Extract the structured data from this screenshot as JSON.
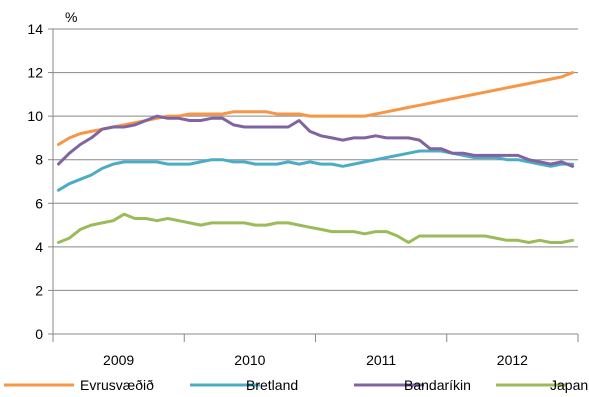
{
  "chart_data": {
    "type": "line",
    "title": "",
    "xlabel": "",
    "ylabel": "",
    "y_unit": "%",
    "ylim": [
      0,
      14
    ],
    "y_ticks": [
      "0",
      "2",
      "4",
      "6",
      "8",
      "10",
      "12",
      "14"
    ],
    "x_start": "2009-01",
    "x_end": "2012-12",
    "x_tick_labels": [
      "2009",
      "2010",
      "2011",
      "2012"
    ],
    "grid": "horizontal",
    "legend_position": "bottom",
    "series": [
      {
        "name": "Evrusvæðið",
        "color": "#f79646",
        "values": [
          8.7,
          9.0,
          9.2,
          9.3,
          9.4,
          9.5,
          9.6,
          9.7,
          9.8,
          9.9,
          10.0,
          10.0,
          10.1,
          10.1,
          10.1,
          10.1,
          10.2,
          10.2,
          10.2,
          10.2,
          10.1,
          10.1,
          10.1,
          10.0,
          10.0,
          10.0,
          10.0,
          10.0,
          10.0,
          10.1,
          10.2,
          10.3,
          10.4,
          10.5,
          10.6,
          10.7,
          10.8,
          10.9,
          11.0,
          11.1,
          11.2,
          11.3,
          11.4,
          11.5,
          11.6,
          11.7,
          11.8,
          12.0
        ]
      },
      {
        "name": "Bretland",
        "color": "#4bacc6",
        "values": [
          6.6,
          6.9,
          7.1,
          7.3,
          7.6,
          7.8,
          7.9,
          7.9,
          7.9,
          7.9,
          7.8,
          7.8,
          7.8,
          7.9,
          8.0,
          8.0,
          7.9,
          7.9,
          7.8,
          7.8,
          7.8,
          7.9,
          7.8,
          7.9,
          7.8,
          7.8,
          7.7,
          7.8,
          7.9,
          8.0,
          8.1,
          8.2,
          8.3,
          8.4,
          8.4,
          8.4,
          8.3,
          8.2,
          8.1,
          8.1,
          8.1,
          8.0,
          8.0,
          7.9,
          7.8,
          7.7,
          7.8,
          7.8
        ]
      },
      {
        "name": "Bandaríkin",
        "color": "#8064a2",
        "values": [
          7.8,
          8.3,
          8.7,
          9.0,
          9.4,
          9.5,
          9.5,
          9.6,
          9.8,
          10.0,
          9.9,
          9.9,
          9.8,
          9.8,
          9.9,
          9.9,
          9.6,
          9.5,
          9.5,
          9.5,
          9.5,
          9.5,
          9.8,
          9.3,
          9.1,
          9.0,
          8.9,
          9.0,
          9.0,
          9.1,
          9.0,
          9.0,
          9.0,
          8.9,
          8.5,
          8.5,
          8.3,
          8.3,
          8.2,
          8.2,
          8.2,
          8.2,
          8.2,
          8.0,
          7.9,
          7.8,
          7.9,
          7.7
        ]
      },
      {
        "name": "Japan",
        "color": "#9bbb59",
        "values": [
          4.2,
          4.4,
          4.8,
          5.0,
          5.1,
          5.2,
          5.5,
          5.3,
          5.3,
          5.2,
          5.3,
          5.2,
          5.1,
          5.0,
          5.1,
          5.1,
          5.1,
          5.1,
          5.0,
          5.0,
          5.1,
          5.1,
          5.0,
          4.9,
          4.8,
          4.7,
          4.7,
          4.7,
          4.6,
          4.7,
          4.7,
          4.5,
          4.2,
          4.5,
          4.5,
          4.5,
          4.5,
          4.5,
          4.5,
          4.5,
          4.4,
          4.3,
          4.3,
          4.2,
          4.3,
          4.2,
          4.2,
          4.3
        ]
      }
    ]
  }
}
